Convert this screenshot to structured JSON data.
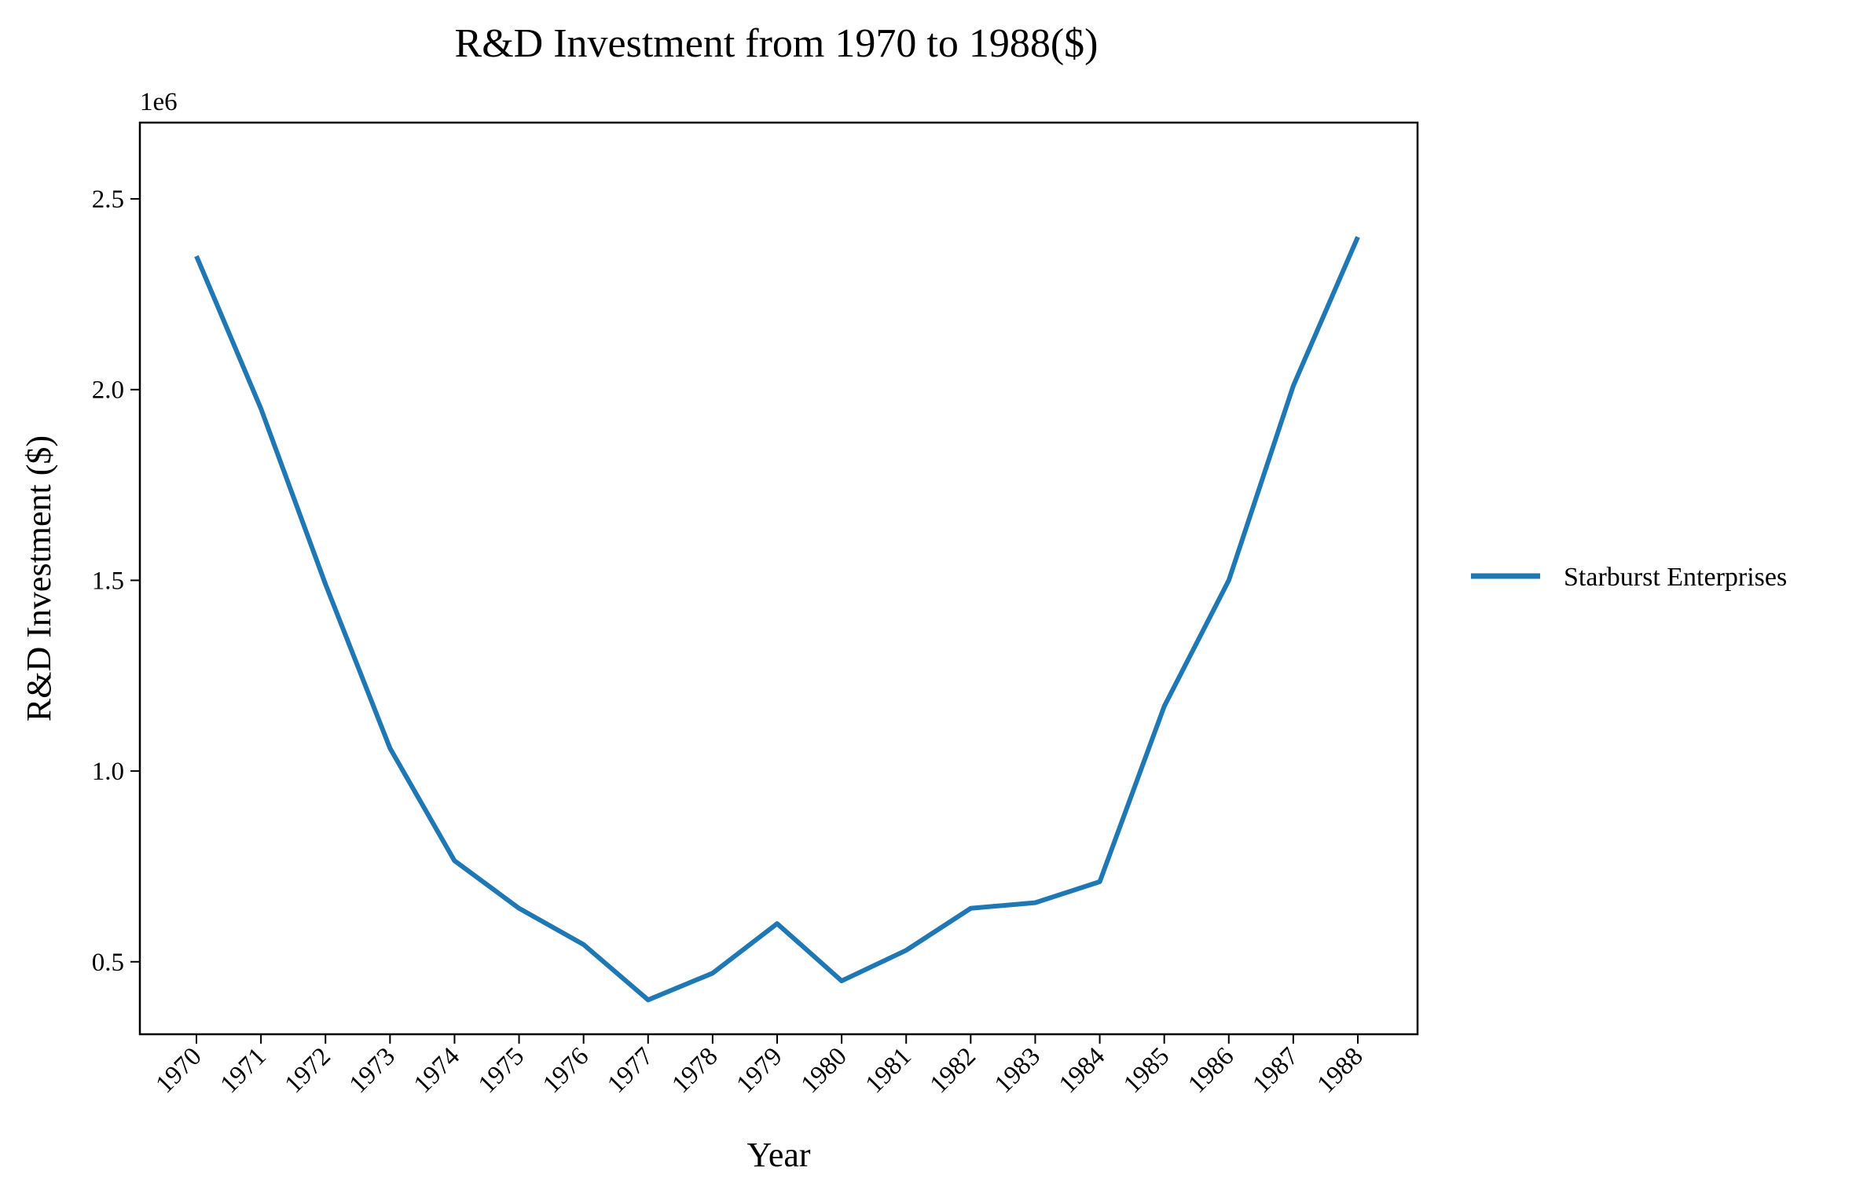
{
  "chart_data": {
    "type": "line",
    "title": "R&D Investment from 1970 to 1988($)",
    "xlabel": "Year",
    "ylabel": "R&D Investment ($)",
    "y_offset_label": "1e6",
    "x": [
      "1970",
      "1971",
      "1972",
      "1973",
      "1974",
      "1975",
      "1976",
      "1977",
      "1978",
      "1979",
      "1980",
      "1981",
      "1982",
      "1983",
      "1984",
      "1985",
      "1986",
      "1987",
      "1988"
    ],
    "series": [
      {
        "name": "Starburst Enterprises",
        "color": "#1f77b4",
        "values": [
          2350000,
          1950000,
          1490000,
          1060000,
          765000,
          640000,
          545000,
          400000,
          470000,
          600000,
          450000,
          530000,
          640000,
          655000,
          710000,
          1170000,
          1500000,
          2010000,
          2400000
        ]
      }
    ],
    "yticks": [
      0.5,
      1.0,
      1.5,
      2.0,
      2.5
    ],
    "ytick_labels": [
      "0.5",
      "1.0",
      "1.5",
      "2.0",
      "2.5"
    ],
    "ylim": [
      310000,
      2700000
    ],
    "grid": false,
    "legend_position": "outside-right"
  }
}
